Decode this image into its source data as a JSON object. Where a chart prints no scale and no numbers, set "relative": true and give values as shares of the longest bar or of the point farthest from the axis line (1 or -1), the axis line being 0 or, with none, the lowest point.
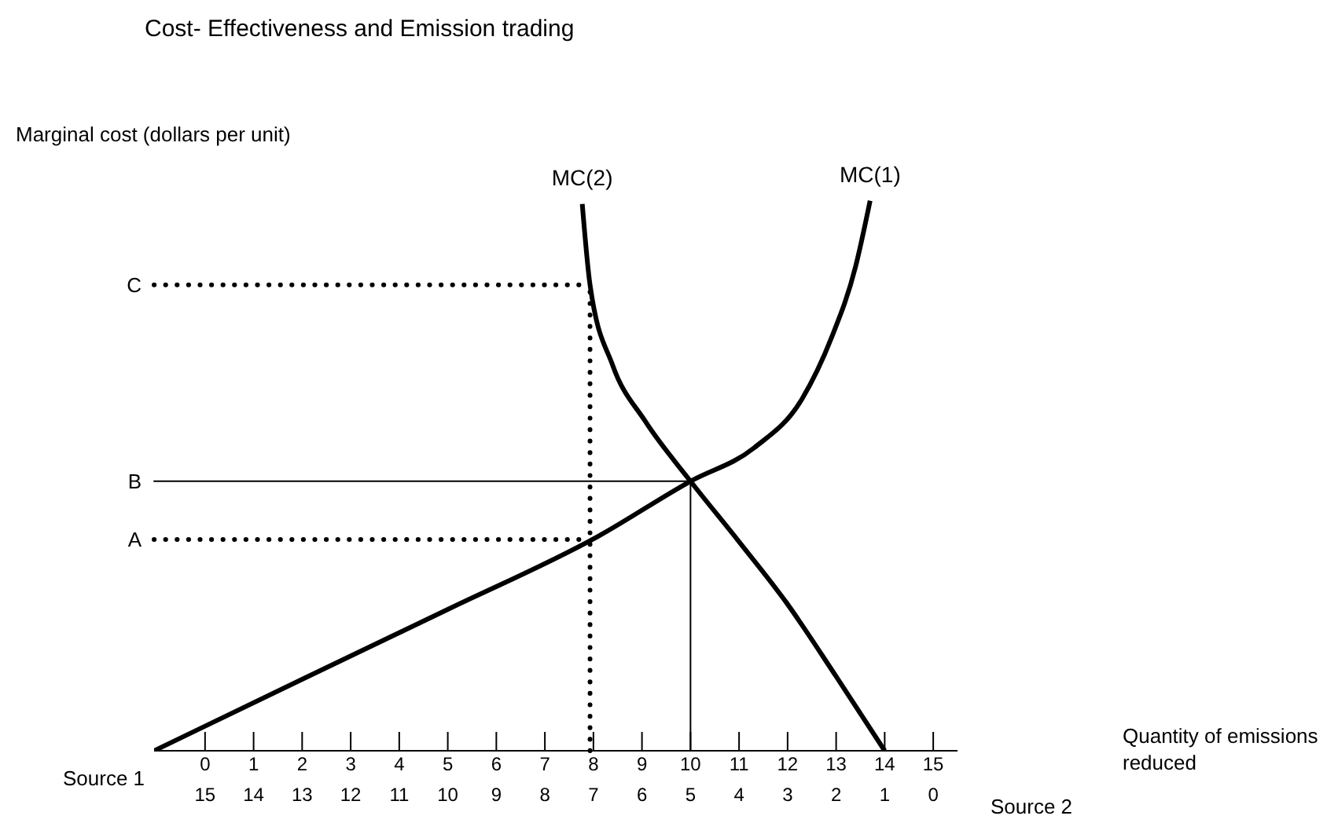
{
  "chart_data": {
    "type": "line",
    "title": "Cost- Effectiveness and Emission trading",
    "ylabel": "Marginal cost (dollars per unit)",
    "xlabel": "Source 1",
    "x2label": "Source 2",
    "annotations": [
      "Quantity of emissions reduced"
    ],
    "relative": true,
    "xlim": [
      -1.05,
      15.5
    ],
    "xticks": [
      0,
      1,
      2,
      3,
      4,
      5,
      6,
      7,
      8,
      9,
      10,
      11,
      12,
      13,
      14,
      15
    ],
    "x2lim": [
      16.05,
      -0.5
    ],
    "x2ticks": [
      15,
      14,
      13,
      12,
      11,
      10,
      9,
      8,
      7,
      6,
      5,
      4,
      3,
      2,
      1,
      0
    ],
    "marker": "none",
    "line_style": "solid",
    "series": [
      {
        "name": "MC(1)",
        "color": "#000000",
        "x": [
          -1.05,
          2,
          5,
          8.1,
          10,
          11.3,
          12.3,
          12.9,
          13.4,
          13.7
        ],
        "values": [
          0,
          0.13,
          0.257,
          0.39,
          0.49,
          0.55,
          0.64,
          0.75,
          0.88,
          1
        ]
      },
      {
        "name": "MC(2)",
        "color": "#000000",
        "x": [
          7.77,
          7.93,
          8.4,
          9.06,
          10,
          11,
          11.97,
          13,
          14
        ],
        "values": [
          0.994,
          0.847,
          0.7,
          0.6,
          0.49,
          0.38,
          0.27,
          0.135,
          0
        ]
      }
    ],
    "ref_lines": [
      {
        "axis": "y",
        "value": 0.847,
        "label": "C",
        "color": "#000000",
        "line_style": "dotted"
      },
      {
        "axis": "y",
        "value": 0.49,
        "label": "B",
        "color": "#000000",
        "line_style": "solid"
      },
      {
        "axis": "y",
        "value": 0.384,
        "label": "A",
        "color": "#000000",
        "line_style": "dotted"
      },
      {
        "axis": "x",
        "value": 7.93,
        "color": "#000000",
        "line_style": "dotted"
      },
      {
        "axis": "x",
        "value": 10,
        "color": "#000000",
        "line_style": "solid"
      }
    ]
  }
}
